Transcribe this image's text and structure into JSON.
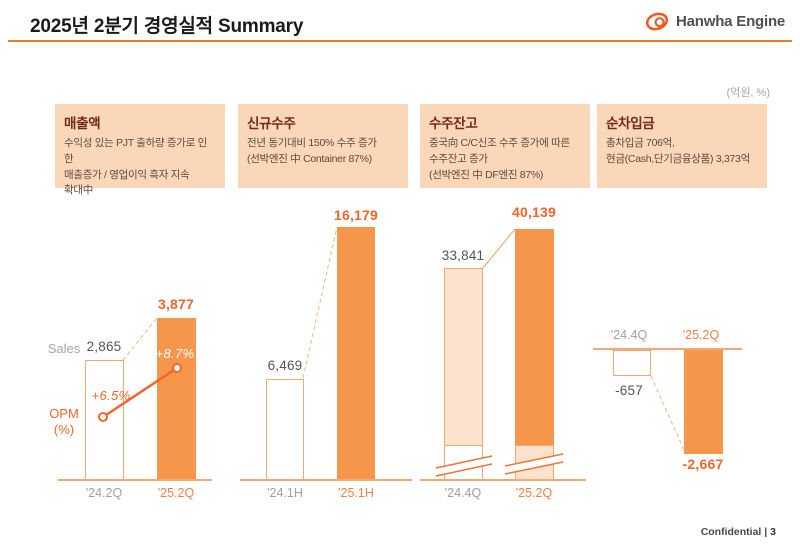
{
  "header": {
    "title": "2025년 2분기 경영실적 Summary",
    "logo_text": "Hanwha Engine",
    "unit_label": "(억원, %)"
  },
  "footer": {
    "label": "Confidential",
    "separator": "|",
    "page": "3"
  },
  "colors": {
    "accent_orange": "#F1652C",
    "bar_orange": "#F6964A",
    "outline_orange": "#F5A871",
    "peach_fill": "#FBE3CE",
    "box_background": "#FAD7B8",
    "box_title": "#75291B",
    "box_text": "#5F4A3D",
    "muted_gray": "#A0A0A0",
    "value_gray": "#555555",
    "title_rule": "#F0781E"
  },
  "boxes": [
    {
      "title": "매출액",
      "desc": "수익성 있는 PJT 출하량 증가로 인한\n매출증가 / 영업이익 흑자 지속\n확대中"
    },
    {
      "title": "신규수주",
      "desc": "전년 동기대비 150% 수주 증가\n(선박엔진 中 Container 87%)"
    },
    {
      "title": "수주잔고",
      "desc": "중국向 C/C신조 수주 증가에 따른\n수주잔고 증가\n(선박엔진 中 DF엔진 87%)"
    },
    {
      "title": "순차입금",
      "desc": "총차입금 706억,\n현금(Cash,단기금융상품) 3,373억"
    }
  ],
  "chart_data": [
    {
      "type": "bar",
      "title": "매출액",
      "categories": [
        "'24.2Q",
        "'25.2Q"
      ],
      "values": [
        2865,
        3877
      ],
      "value_labels": [
        "2,865",
        "3,877"
      ],
      "series": [
        {
          "name": "Sales",
          "values": [
            2865,
            3877
          ]
        },
        {
          "name": "OPM (%)",
          "values": [
            6.5,
            8.7
          ]
        }
      ],
      "opm_labels": [
        "+6.5%",
        "+8.7%"
      ],
      "axis_labels": {
        "sales": "Sales",
        "opm": "OPM\n(%)"
      },
      "legend_position": "left",
      "grid": false
    },
    {
      "type": "bar",
      "title": "신규수주",
      "categories": [
        "'24.1H",
        "'25.1H"
      ],
      "values": [
        6469,
        16179
      ],
      "value_labels": [
        "6,469",
        "16,179"
      ],
      "grid": false
    },
    {
      "type": "bar",
      "title": "수주잔고",
      "categories": [
        "'24.4Q",
        "'25.2Q"
      ],
      "values": [
        33841,
        40139
      ],
      "value_labels": [
        "33,841",
        "40,139"
      ],
      "axis_break": true,
      "grid": false
    },
    {
      "type": "bar",
      "title": "순차입금",
      "categories": [
        "'24.4Q",
        "'25.2Q"
      ],
      "values": [
        -657,
        -2667
      ],
      "value_labels": [
        "-657",
        "-2,667"
      ],
      "axis_position": "top",
      "grid": false
    }
  ]
}
